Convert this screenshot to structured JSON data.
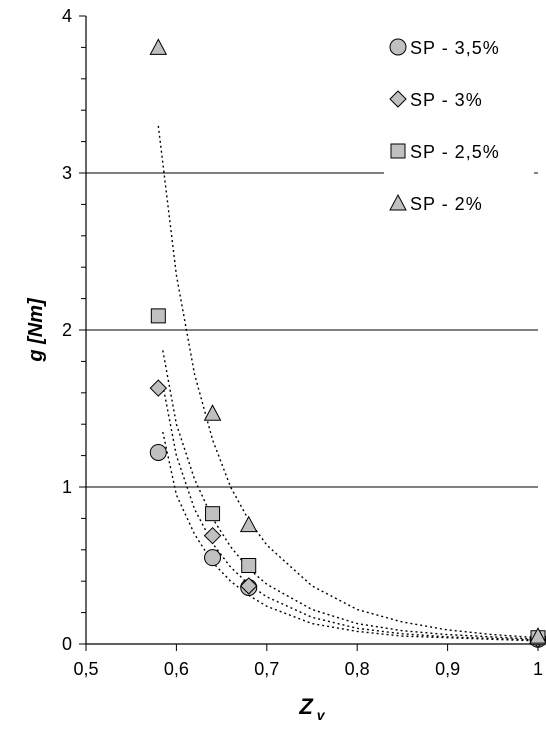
{
  "chart_data": {
    "type": "scatter",
    "xlabel_main": "Z",
    "xlabel_sub": "v",
    "ylabel": "g [Nm]",
    "xlim": [
      0.5,
      1.0
    ],
    "ylim": [
      0,
      4
    ],
    "x_ticks": [
      0.5,
      0.6,
      0.7,
      0.8,
      0.9,
      1.0
    ],
    "x_tick_labels": [
      "0,5",
      "0,6",
      "0,7",
      "0,8",
      "0,9",
      "1"
    ],
    "y_ticks": [
      0,
      1,
      2,
      3,
      4
    ],
    "y_tick_labels": [
      "0",
      "1",
      "2",
      "3",
      "4"
    ],
    "y_minor_step": 0.2,
    "gridlines_y": [
      1,
      2,
      3
    ],
    "legend_position": "top-right",
    "series": [
      {
        "name": "SP - 3,5%",
        "marker": "circle",
        "color": "#c0c0c0",
        "x": [
          0.58,
          0.64,
          0.68,
          1.0
        ],
        "y": [
          1.22,
          0.55,
          0.36,
          0.03
        ],
        "trend": [
          [
            0.585,
            1.35
          ],
          [
            0.6,
            0.95
          ],
          [
            0.62,
            0.7
          ],
          [
            0.64,
            0.52
          ],
          [
            0.66,
            0.4
          ],
          [
            0.68,
            0.31
          ],
          [
            0.7,
            0.24
          ],
          [
            0.75,
            0.13
          ],
          [
            0.8,
            0.08
          ],
          [
            0.85,
            0.05
          ],
          [
            0.9,
            0.04
          ],
          [
            0.95,
            0.03
          ],
          [
            1.0,
            0.02
          ]
        ]
      },
      {
        "name": "SP - 3%",
        "marker": "diamond",
        "color": "#c0c0c0",
        "x": [
          0.58,
          0.64,
          0.68,
          1.0
        ],
        "y": [
          1.63,
          0.69,
          0.37,
          0.03
        ],
        "trend": [
          [
            0.585,
            1.65
          ],
          [
            0.6,
            1.2
          ],
          [
            0.62,
            0.86
          ],
          [
            0.64,
            0.64
          ],
          [
            0.66,
            0.49
          ],
          [
            0.68,
            0.38
          ],
          [
            0.7,
            0.3
          ],
          [
            0.75,
            0.17
          ],
          [
            0.8,
            0.1
          ],
          [
            0.85,
            0.065
          ],
          [
            0.9,
            0.045
          ],
          [
            0.95,
            0.035
          ],
          [
            1.0,
            0.025
          ]
        ]
      },
      {
        "name": "SP - 2,5%",
        "marker": "square",
        "color": "#c0c0c0",
        "x": [
          0.58,
          0.64,
          0.68,
          1.0
        ],
        "y": [
          2.09,
          0.83,
          0.5,
          0.04
        ],
        "trend": [
          [
            0.585,
            1.87
          ],
          [
            0.6,
            1.4
          ],
          [
            0.62,
            1.05
          ],
          [
            0.64,
            0.8
          ],
          [
            0.66,
            0.62
          ],
          [
            0.68,
            0.48
          ],
          [
            0.7,
            0.38
          ],
          [
            0.75,
            0.22
          ],
          [
            0.8,
            0.13
          ],
          [
            0.85,
            0.085
          ],
          [
            0.9,
            0.06
          ],
          [
            0.95,
            0.045
          ],
          [
            1.0,
            0.03
          ]
        ]
      },
      {
        "name": "SP - 2%",
        "marker": "triangle",
        "color": "#c0c0c0",
        "x": [
          0.58,
          0.64,
          0.68,
          1.0
        ],
        "y": [
          3.8,
          1.47,
          0.76,
          0.05
        ],
        "trend": [
          [
            0.58,
            3.3
          ],
          [
            0.6,
            2.35
          ],
          [
            0.62,
            1.72
          ],
          [
            0.64,
            1.3
          ],
          [
            0.66,
            1.0
          ],
          [
            0.68,
            0.79
          ],
          [
            0.7,
            0.63
          ],
          [
            0.75,
            0.37
          ],
          [
            0.8,
            0.22
          ],
          [
            0.85,
            0.14
          ],
          [
            0.9,
            0.09
          ],
          [
            0.95,
            0.06
          ],
          [
            1.0,
            0.04
          ]
        ]
      }
    ]
  }
}
